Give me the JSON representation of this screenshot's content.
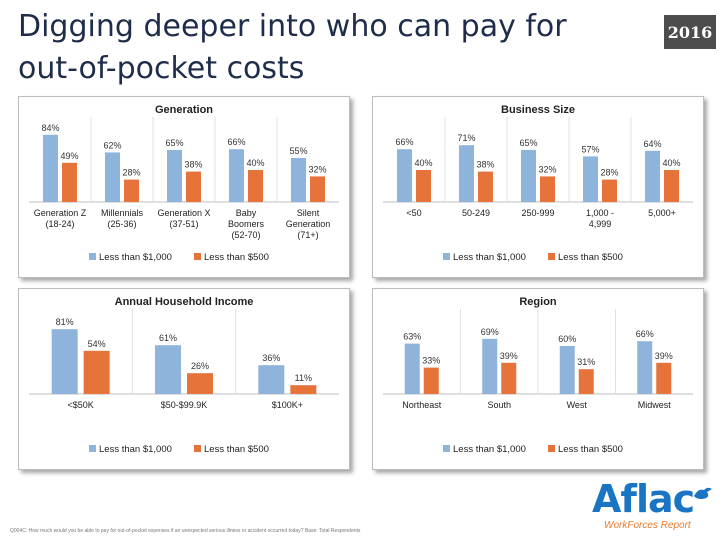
{
  "slide": {
    "title_line1": "Digging deeper into who can pay for",
    "title_line2": "out-of-pocket costs",
    "year_badge": "2016",
    "footnote": "Q004C: How much would you be able to pay for out-of-pocket expenses if an unexpected serious illness or accident occurred today? Base: Total Respondents",
    "logo": {
      "brand": "Aflac",
      "tagline": "WorkForces Report",
      "icon": "duck-icon",
      "brand_color": "#1a74c4",
      "tagline_color": "#e37a2d"
    }
  },
  "colors": {
    "series1": "#8fb4dc",
    "series2": "#e5733a"
  },
  "chart_data": [
    {
      "type": "bar",
      "title": "Generation",
      "categories": [
        "Generation Z\n(18-24)",
        "Millennials\n(25-36)",
        "Generation X\n(37-51)",
        "Baby\nBoomers\n(52-70)",
        "Silent\nGeneration\n(71+)"
      ],
      "series": [
        {
          "name": "Less than $1,000",
          "values": [
            84,
            62,
            65,
            66,
            55
          ],
          "labels": [
            "84%",
            "62%",
            "65%",
            "66%",
            "55%"
          ]
        },
        {
          "name": "Less than $500",
          "values": [
            49,
            28,
            38,
            40,
            32
          ],
          "labels": [
            "49%",
            "28%",
            "38%",
            "40%",
            "32%"
          ]
        }
      ],
      "ylim": [
        0,
        100
      ],
      "grid": false,
      "legend": "bottom"
    },
    {
      "type": "bar",
      "title": "Business Size",
      "categories": [
        "<50",
        "50-249",
        "250-999",
        "1,000 -\n4,999",
        "5,000+"
      ],
      "series": [
        {
          "name": "Less than $1,000",
          "values": [
            66,
            71,
            65,
            57,
            64
          ],
          "labels": [
            "66%",
            "71%",
            "65%",
            "57%",
            "64%"
          ]
        },
        {
          "name": "Less than $500",
          "values": [
            40,
            38,
            32,
            28,
            40
          ],
          "labels": [
            "40%",
            "38%",
            "32%",
            "28%",
            "40%"
          ]
        }
      ],
      "ylim": [
        0,
        100
      ],
      "grid": false,
      "legend": "bottom"
    },
    {
      "type": "bar",
      "title": "Annual Household Income",
      "categories": [
        "<$50K",
        "$50-$99.9K",
        "$100K+"
      ],
      "series": [
        {
          "name": "Less than $1,000",
          "values": [
            81,
            61,
            36
          ],
          "labels": [
            "81%",
            "61%",
            "36%"
          ]
        },
        {
          "name": "Less than $500",
          "values": [
            54,
            26,
            11
          ],
          "labels": [
            "54%",
            "26%",
            "11%"
          ]
        }
      ],
      "ylim": [
        0,
        100
      ],
      "grid": false,
      "legend": "bottom"
    },
    {
      "type": "bar",
      "title": "Region",
      "categories": [
        "Northeast",
        "South",
        "West",
        "Midwest"
      ],
      "series": [
        {
          "name": "Less than $1,000",
          "values": [
            63,
            69,
            60,
            66
          ],
          "labels": [
            "63%",
            "69%",
            "60%",
            "66%"
          ]
        },
        {
          "name": "Less than $500",
          "values": [
            33,
            39,
            31,
            39
          ],
          "labels": [
            "33%",
            "39%",
            "31%",
            "39%"
          ]
        }
      ],
      "ylim": [
        0,
        100
      ],
      "grid": false,
      "legend": "bottom"
    }
  ]
}
